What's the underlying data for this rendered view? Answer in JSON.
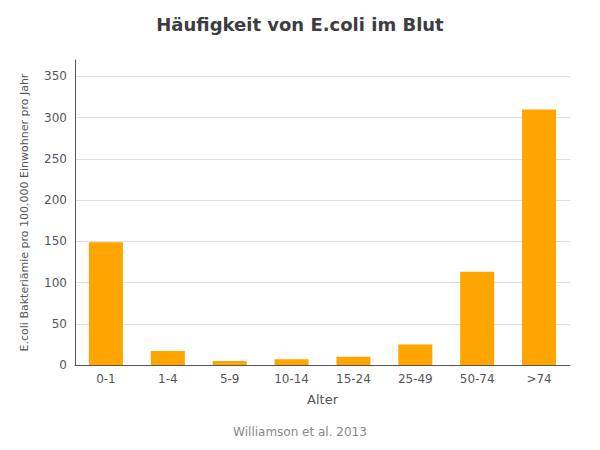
{
  "chart_data": {
    "type": "bar",
    "title": "Häufigkeit von E.coli im Blut",
    "categories": [
      "0-1",
      "1-4",
      "5-9",
      "10-14",
      "15-24",
      "25-49",
      "50-74",
      ">74"
    ],
    "values": [
      149,
      17,
      5,
      7,
      10,
      25,
      113,
      310
    ],
    "color": "#FFA500",
    "xlabel": "Alter",
    "ylabel": "E.coli Bakteriämie pro 100.000 Einwohner pro Jahr",
    "ylim": [
      0,
      370
    ],
    "yticks": [
      0,
      50,
      100,
      150,
      200,
      250,
      300,
      350
    ],
    "grid": true,
    "annotation": "Williamson et al. 2013"
  }
}
